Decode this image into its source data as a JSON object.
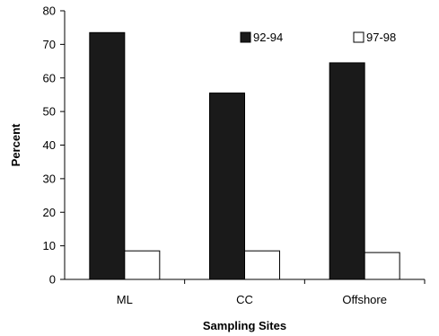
{
  "chart_data": {
    "type": "bar",
    "categories": [
      "ML",
      "CC",
      "Offshore"
    ],
    "series": [
      {
        "name": "92-94",
        "values": [
          73.5,
          55.5,
          64.5
        ],
        "color": "#1a1a1a"
      },
      {
        "name": "97-98",
        "values": [
          8.5,
          8.5,
          8
        ],
        "color": "#ffffff"
      }
    ],
    "title": "",
    "xlabel": "Sampling Sites",
    "ylabel": "Percent",
    "ylim": [
      0,
      80
    ],
    "yticks": [
      0,
      10,
      20,
      30,
      40,
      50,
      60,
      70,
      80
    ],
    "grid": false,
    "legend_position": "top-right"
  }
}
